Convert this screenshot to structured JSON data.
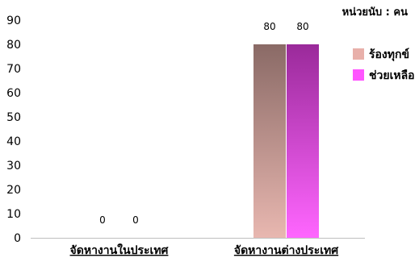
{
  "chart_data": {
    "type": "bar",
    "unit_label": "หน่วยนับ : คน",
    "categories": [
      "จัดหางานในประเทศ",
      "จัดหางานต่างประเทศ"
    ],
    "series": [
      {
        "name": "ร้องทุกข์",
        "values": [
          0,
          80
        ],
        "color_top": "#8a6a66",
        "color_bottom": "#e8b7b0"
      },
      {
        "name": "ช่วยเหลือ",
        "values": [
          0,
          80
        ],
        "color_top": "#9a2a9a",
        "color_bottom": "#ff66ff"
      }
    ],
    "ylim": [
      0,
      90
    ],
    "yticks": [
      0,
      10,
      20,
      30,
      40,
      50,
      60,
      70,
      80,
      90
    ],
    "legend_position": "right",
    "legend_colors": [
      "#e8b0aa",
      "#ff55ff"
    ],
    "data_labels": true,
    "grid": false
  }
}
